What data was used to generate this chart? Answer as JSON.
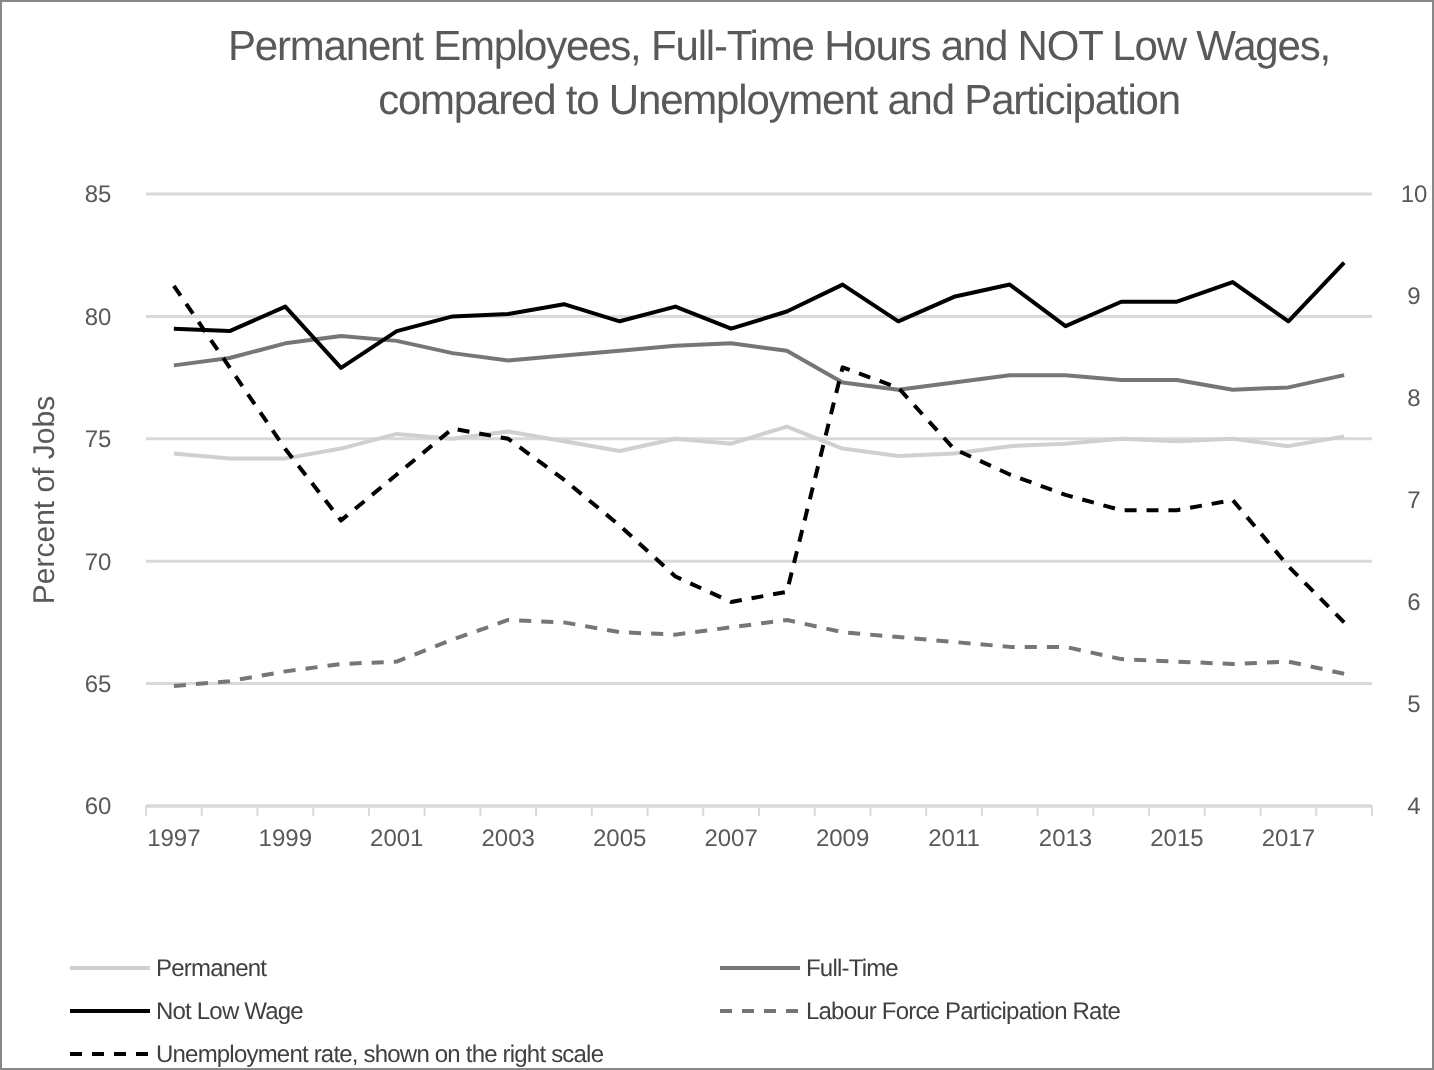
{
  "chart_data": {
    "type": "line",
    "title": "Permanent Employees, Full-Time Hours and NOT Low Wages,\ncompared to Unemployment and Participation",
    "ylabel": "Percent of Jobs",
    "categories": [
      "1997",
      null,
      "1999",
      null,
      "2001",
      null,
      "2003",
      null,
      "2005",
      null,
      "2007",
      null,
      "2009",
      null,
      "2011",
      null,
      "2013",
      null,
      "2015",
      null,
      "2017",
      null
    ],
    "ylim": [
      60,
      85
    ],
    "yticks": [
      60,
      65,
      70,
      75,
      80,
      85
    ],
    "y2lim": [
      4,
      10
    ],
    "y2ticks": [
      4,
      5,
      6,
      7,
      8,
      9,
      10
    ],
    "grid": "y",
    "legend": "bottom",
    "series": [
      {
        "name": "Permanent",
        "color": "#d0d0d0",
        "line_style": "solid",
        "values": [
          74.4,
          74.2,
          74.2,
          74.6,
          75.2,
          75.0,
          75.3,
          74.9,
          74.5,
          75.0,
          74.8,
          75.5,
          74.6,
          74.3,
          74.4,
          74.7,
          74.8,
          75.0,
          74.9,
          75.0,
          74.7,
          75.1
        ]
      },
      {
        "name": "Full-Time",
        "color": "#767676",
        "line_style": "solid",
        "values": [
          78.0,
          78.3,
          78.9,
          79.2,
          79.0,
          78.5,
          78.2,
          78.4,
          78.6,
          78.8,
          78.9,
          78.6,
          77.3,
          77.0,
          77.3,
          77.6,
          77.6,
          77.4,
          77.4,
          77.0,
          77.1,
          77.6
        ]
      },
      {
        "name": "Not Low Wage",
        "color": "#000000",
        "line_style": "solid",
        "values": [
          79.5,
          79.4,
          80.4,
          77.9,
          79.4,
          80.0,
          80.1,
          80.5,
          79.8,
          80.4,
          79.5,
          80.2,
          81.3,
          79.8,
          80.8,
          81.3,
          79.6,
          80.6,
          80.6,
          81.4,
          79.8,
          82.2
        ]
      },
      {
        "name": "Labour Force Participation Rate",
        "color": "#767676",
        "line_style": "dashed",
        "values": [
          64.9,
          65.1,
          65.5,
          65.8,
          65.9,
          66.8,
          67.6,
          67.5,
          67.1,
          67.0,
          67.3,
          67.6,
          67.1,
          66.9,
          66.7,
          66.5,
          66.5,
          66.0,
          65.9,
          65.8,
          65.9,
          65.4
        ]
      },
      {
        "name": "Unemployment rate, shown on the right scale",
        "color": "#000000",
        "line_style": "dashed",
        "axis": "y2",
        "values": [
          9.1,
          8.3,
          7.5,
          6.8,
          7.25,
          7.7,
          7.6,
          7.2,
          6.75,
          6.25,
          6.0,
          6.1,
          8.3,
          8.1,
          7.5,
          7.25,
          7.05,
          6.9,
          6.9,
          7.0,
          6.35,
          5.8
        ]
      }
    ]
  }
}
